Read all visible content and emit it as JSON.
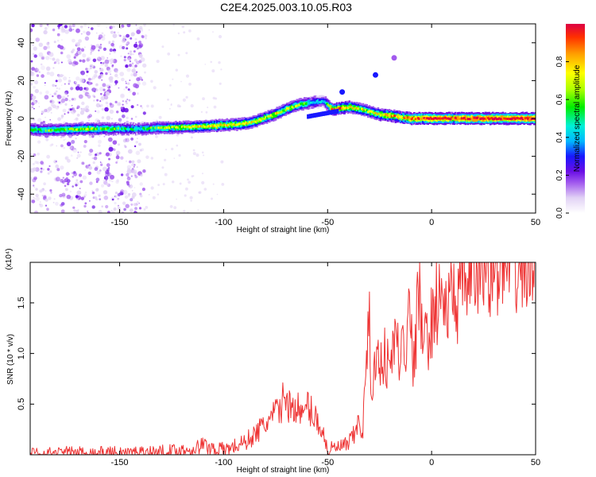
{
  "figure_title": "C2E4.2025.003.10.05.R03",
  "colors": {
    "snr_line": "#ee3333",
    "colormap": [
      "#ffffff",
      "#e2d3f5",
      "#a25aee",
      "#6a0ee6",
      "#1818ff",
      "#00b8ff",
      "#00f0d8",
      "#00ee00",
      "#a8ff00",
      "#ffff00",
      "#ffa000",
      "#ff3000",
      "#dd0044"
    ]
  },
  "chart_data": [
    {
      "type": "heatmap",
      "title": "",
      "xlabel": "Height of straight line (km)",
      "ylabel": "Frequency (Hz)",
      "xlim": [
        -193,
        50
      ],
      "ylim": [
        -50,
        50
      ],
      "xticks": [
        -150,
        -100,
        -50,
        0,
        50
      ],
      "yticks": [
        -40,
        -20,
        0,
        20,
        40
      ],
      "colorbar": {
        "label": "Normalized spectral amplitude",
        "range": [
          0,
          1
        ],
        "ticks": [
          "0.0",
          "0.2",
          "0.4",
          "0.6",
          "0.8"
        ],
        "tick_values": [
          0,
          0.2,
          0.4,
          0.6,
          0.8
        ]
      },
      "ridge": {
        "x": [
          -193,
          -180,
          -165,
          -150,
          -140,
          -130,
          -115,
          -100,
          -92,
          -85,
          -80,
          -75,
          -70,
          -65,
          -58,
          -52,
          -48,
          -44,
          -40,
          -35,
          -30,
          -25,
          -20,
          -15,
          -10,
          -5,
          0,
          10,
          20,
          30,
          40,
          50
        ],
        "freq": [
          -6,
          -6,
          -5.5,
          -5.5,
          -5.5,
          -5,
          -4.5,
          -3.5,
          -3,
          -1.5,
          0.5,
          2.5,
          5,
          7,
          8.5,
          9,
          4.5,
          5.5,
          6,
          5,
          3.5,
          2,
          1.5,
          0.5,
          0,
          0,
          0,
          0,
          0,
          0,
          0,
          0
        ],
        "amplitude": [
          0.55,
          0.6,
          0.65,
          0.55,
          0.5,
          0.65,
          0.7,
          0.75,
          0.7,
          0.7,
          0.65,
          0.7,
          0.7,
          0.65,
          0.5,
          0.4,
          0.9,
          0.85,
          0.75,
          0.7,
          0.7,
          0.75,
          0.8,
          0.8,
          0.9,
          0.95,
          1.0,
          0.95,
          1.0,
          1.0,
          1.0,
          1.0
        ]
      },
      "secondary_branch": {
        "x": [
          -60,
          -55,
          -50,
          -45
        ],
        "freq": [
          1,
          2,
          3,
          4
        ]
      },
      "isolated_blobs": [
        {
          "x": -43,
          "freq": 14,
          "amplitude": 0.35
        },
        {
          "x": -27,
          "freq": 23,
          "amplitude": 0.3
        },
        {
          "x": -18,
          "freq": 32,
          "amplitude": 0.15
        }
      ],
      "scattered_noise_x_range": [
        -193,
        -138
      ],
      "sparse_noise_x_range": [
        -138,
        -100
      ]
    },
    {
      "type": "line",
      "title": "",
      "xlabel": "Height of straight line (km)",
      "ylabel": "SNR (10 * v/v)",
      "y_scale_label": "(x10⁴)",
      "xlim": [
        -193,
        50
      ],
      "ylim": [
        0,
        1.9
      ],
      "xticks": [
        -150,
        -100,
        -50,
        0,
        50
      ],
      "yticks": [
        0.5,
        1.0,
        1.5
      ],
      "ytick_labels": [
        "0.5",
        "1.0",
        "1.5"
      ],
      "series": [
        {
          "x": [
            -193,
            -175,
            -150,
            -130,
            -115,
            -110,
            -108,
            -100,
            -95,
            -90,
            -85,
            -80,
            -75,
            -72,
            -70,
            -68,
            -65,
            -62,
            -60,
            -57,
            -55,
            -52,
            -50,
            -45,
            -40,
            -37,
            -35,
            -33,
            -32,
            -30,
            -29,
            -28,
            -26,
            -25,
            -23,
            -20,
            -18,
            -16,
            -15,
            -14,
            -13,
            -12,
            -11,
            -10,
            -9,
            -8,
            -6,
            -5,
            -3,
            0,
            2,
            5,
            8,
            10,
            13,
            15,
            20,
            25,
            30,
            35,
            40,
            45,
            50
          ],
          "y": [
            0.01,
            0.02,
            0.02,
            0.03,
            0.05,
            0.1,
            0.08,
            0.05,
            0.08,
            0.12,
            0.2,
            0.3,
            0.4,
            0.5,
            0.6,
            0.45,
            0.5,
            0.35,
            0.5,
            0.4,
            0.35,
            0.2,
            0.05,
            0.07,
            0.1,
            0.2,
            0.32,
            0.25,
            0.7,
            1.3,
            0.7,
            0.8,
            0.9,
            0.95,
            1.0,
            0.85,
            1.1,
            1.2,
            0.6,
            1.5,
            0.8,
            1.25,
            1.9,
            1.3,
            0.8,
            1.0,
            1.7,
            1.2,
            1.1,
            1.3,
            1.5,
            1.55,
            1.4,
            1.6,
            1.5,
            1.7,
            1.75,
            1.82,
            1.8,
            1.82,
            1.8,
            1.82,
            1.8
          ]
        }
      ]
    }
  ]
}
